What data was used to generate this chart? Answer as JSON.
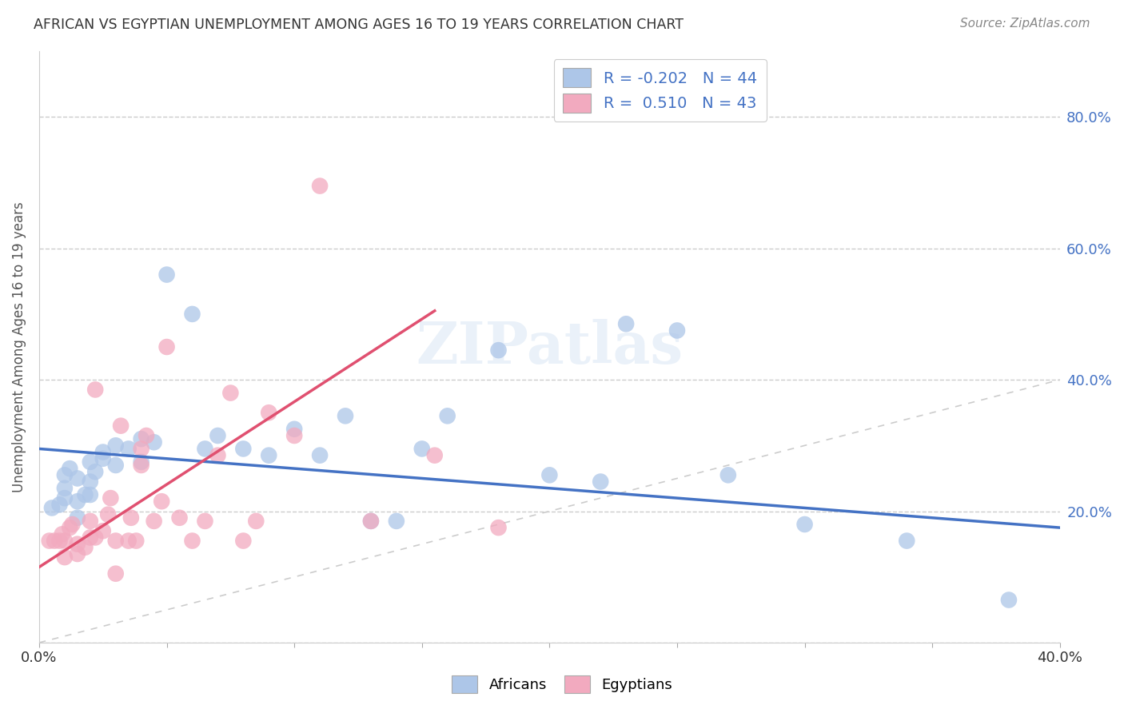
{
  "title": "AFRICAN VS EGYPTIAN UNEMPLOYMENT AMONG AGES 16 TO 19 YEARS CORRELATION CHART",
  "source": "Source: ZipAtlas.com",
  "ylabel": "Unemployment Among Ages 16 to 19 years",
  "xlim": [
    0.0,
    0.4
  ],
  "ylim": [
    0.0,
    0.9
  ],
  "africans_R": -0.202,
  "africans_N": 44,
  "egyptians_R": 0.51,
  "egyptians_N": 43,
  "african_color": "#adc6e8",
  "egyptian_color": "#f2aabf",
  "african_line_color": "#4472c4",
  "egyptian_line_color": "#e05070",
  "diagonal_color": "#cccccc",
  "background_color": "#ffffff",
  "tick_color_right": "#4472c4",
  "africans_x": [
    0.005,
    0.008,
    0.01,
    0.01,
    0.01,
    0.012,
    0.015,
    0.015,
    0.015,
    0.018,
    0.02,
    0.02,
    0.02,
    0.022,
    0.025,
    0.025,
    0.03,
    0.03,
    0.035,
    0.04,
    0.04,
    0.045,
    0.05,
    0.06,
    0.065,
    0.07,
    0.08,
    0.09,
    0.1,
    0.11,
    0.12,
    0.13,
    0.14,
    0.15,
    0.16,
    0.18,
    0.2,
    0.22,
    0.23,
    0.25,
    0.27,
    0.3,
    0.34,
    0.38
  ],
  "africans_y": [
    0.205,
    0.21,
    0.22,
    0.235,
    0.255,
    0.265,
    0.19,
    0.215,
    0.25,
    0.225,
    0.225,
    0.245,
    0.275,
    0.26,
    0.28,
    0.29,
    0.27,
    0.3,
    0.295,
    0.275,
    0.31,
    0.305,
    0.56,
    0.5,
    0.295,
    0.315,
    0.295,
    0.285,
    0.325,
    0.285,
    0.345,
    0.185,
    0.185,
    0.295,
    0.345,
    0.445,
    0.255,
    0.245,
    0.485,
    0.475,
    0.255,
    0.18,
    0.155,
    0.065
  ],
  "egyptians_x": [
    0.004,
    0.006,
    0.008,
    0.009,
    0.01,
    0.01,
    0.012,
    0.013,
    0.015,
    0.015,
    0.018,
    0.02,
    0.02,
    0.022,
    0.022,
    0.025,
    0.027,
    0.028,
    0.03,
    0.03,
    0.032,
    0.035,
    0.036,
    0.038,
    0.04,
    0.04,
    0.042,
    0.045,
    0.048,
    0.05,
    0.055,
    0.06,
    0.065,
    0.07,
    0.075,
    0.08,
    0.085,
    0.09,
    0.1,
    0.11,
    0.13,
    0.155,
    0.18
  ],
  "egyptians_y": [
    0.155,
    0.155,
    0.155,
    0.165,
    0.13,
    0.155,
    0.175,
    0.18,
    0.135,
    0.15,
    0.145,
    0.16,
    0.185,
    0.16,
    0.385,
    0.17,
    0.195,
    0.22,
    0.105,
    0.155,
    0.33,
    0.155,
    0.19,
    0.155,
    0.27,
    0.295,
    0.315,
    0.185,
    0.215,
    0.45,
    0.19,
    0.155,
    0.185,
    0.285,
    0.38,
    0.155,
    0.185,
    0.35,
    0.315,
    0.695,
    0.185,
    0.285,
    0.175
  ],
  "african_line_x": [
    0.0,
    0.4
  ],
  "african_line_y": [
    0.295,
    0.175
  ],
  "egyptian_line_x": [
    0.0,
    0.155
  ],
  "egyptian_line_y": [
    0.115,
    0.505
  ]
}
